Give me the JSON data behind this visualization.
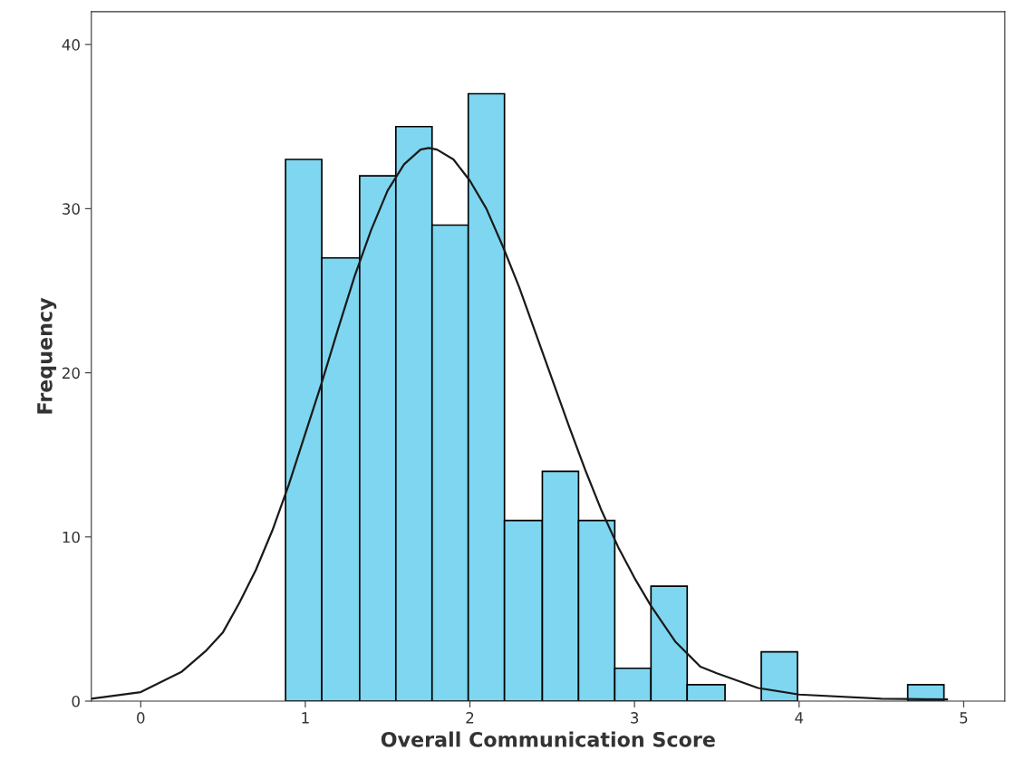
{
  "chart_data": {
    "type": "histogram",
    "xlabel": "Overall Communication Score",
    "ylabel": "Frequency",
    "bins": [
      0.88,
      1.1,
      1.33,
      1.55,
      1.77,
      1.99,
      2.21,
      2.44,
      2.66,
      2.88,
      3.1,
      3.32,
      3.55,
      3.77,
      3.99,
      4.66,
      4.88
    ],
    "values": [
      33,
      27,
      32,
      35,
      29,
      37,
      11,
      14,
      11,
      2,
      7,
      1,
      0,
      3,
      0,
      1
    ],
    "color": "#7fd6f0",
    "series": [
      {
        "type": "line",
        "color": "#1a1a1a",
        "x": [
          -0.3,
          0,
          0.25,
          0.4,
          0.5,
          0.6,
          0.7,
          0.8,
          0.9,
          1.0,
          1.1,
          1.2,
          1.3,
          1.4,
          1.5,
          1.6,
          1.7,
          1.75,
          1.8,
          1.9,
          2.0,
          2.1,
          2.2,
          2.3,
          2.4,
          2.5,
          2.6,
          2.7,
          2.8,
          2.9,
          3.0,
          3.1,
          3.25,
          3.4,
          3.5,
          3.75,
          4.0,
          4.5,
          4.9
        ],
        "values": [
          0.15,
          0.55,
          1.8,
          3.1,
          4.2,
          6.0,
          8.0,
          10.4,
          13.2,
          16.3,
          19.4,
          22.7,
          25.9,
          28.7,
          31.1,
          32.7,
          33.6,
          33.7,
          33.6,
          33.0,
          31.7,
          30.0,
          27.7,
          25.2,
          22.4,
          19.6,
          16.8,
          14.1,
          11.6,
          9.4,
          7.5,
          5.8,
          3.6,
          2.1,
          1.7,
          0.8,
          0.4,
          0.15,
          0.1
        ]
      }
    ],
    "xlim": [
      -0.3,
      5.25
    ],
    "ylim": [
      0,
      42
    ],
    "xticks": [
      0,
      1,
      2,
      3,
      4,
      5
    ],
    "yticks": [
      0,
      10,
      20,
      30,
      40
    ],
    "grid": false,
    "legend": false
  }
}
